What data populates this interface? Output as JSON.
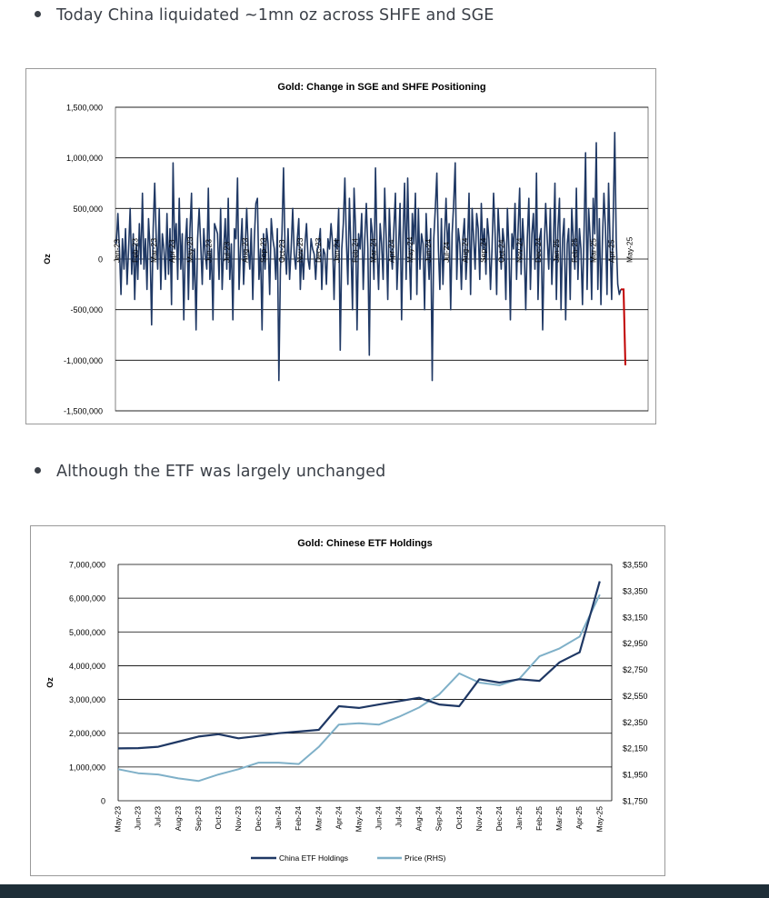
{
  "bullets": [
    "Today China liquidated ~1mn oz across SHFE and SGE",
    "Although the ETF was largely unchanged"
  ],
  "colors": {
    "navy": "#1f3864",
    "red": "#c00000",
    "light_blue": "#7fb0c8",
    "grid": "#000000",
    "footer": "#1e2e38"
  },
  "chart_data": [
    {
      "type": "line",
      "title": "Gold: Change in SGE and SHFE Positioning",
      "ylabel": "Oz",
      "ylim": [
        -1500000,
        1500000
      ],
      "yticks": [
        1500000,
        1000000,
        500000,
        0,
        -500000,
        -1000000,
        -1500000
      ],
      "ytick_labels": [
        "1,500,000",
        "1,000,000",
        "500,000",
        "0",
        "-500,000",
        "-1,000,000",
        "-1,500,000"
      ],
      "xtick_labels": [
        "Jan-23",
        "Feb-23",
        "Mar-23",
        "Apr-23",
        "May-23",
        "Jun-23",
        "Jul-23",
        "Aug-23",
        "Sep-23",
        "Oct-23",
        "Nov-23",
        "Dec-23",
        "Jan-24",
        "Feb-24",
        "Mar-24",
        "Apr-24",
        "May-24",
        "Jun-24",
        "Jul-24",
        "Aug-24",
        "Sep-24",
        "Oct-24",
        "Nov-24",
        "Dec-24",
        "Jan-25",
        "Feb-25",
        "Mar-25",
        "Apr-25",
        "May-25"
      ],
      "grid": "horizontal",
      "series": [
        {
          "color": "navy",
          "values": [
            150000,
            450000,
            100000,
            -350000,
            200000,
            -100000,
            300000,
            -250000,
            100000,
            500000,
            -150000,
            250000,
            -400000,
            150000,
            -200000,
            350000,
            -50000,
            650000,
            -100000,
            200000,
            -300000,
            400000,
            100000,
            -650000,
            300000,
            750000,
            200000,
            -100000,
            500000,
            -300000,
            250000,
            100000,
            -200000,
            450000,
            -150000,
            300000,
            -450000,
            950000,
            100000,
            350000,
            -200000,
            600000,
            -100000,
            250000,
            -600000,
            150000,
            400000,
            -400000,
            300000,
            650000,
            -300000,
            100000,
            -700000,
            200000,
            500000,
            150000,
            -250000,
            300000,
            50000,
            -100000,
            700000,
            -200000,
            100000,
            -600000,
            350000,
            300000,
            250000,
            -200000,
            500000,
            -300000,
            100000,
            400000,
            -100000,
            600000,
            -200000,
            150000,
            -600000,
            300000,
            200000,
            800000,
            -300000,
            100000,
            400000,
            -250000,
            100000,
            500000,
            100000,
            -100000,
            300000,
            -400000,
            200000,
            550000,
            600000,
            -200000,
            100000,
            -700000,
            250000,
            -100000,
            300000,
            150000,
            -350000,
            400000,
            200000,
            100000,
            -200000,
            300000,
            -1200000,
            -100000,
            250000,
            900000,
            100000,
            -150000,
            300000,
            -200000,
            100000,
            500000,
            50000,
            -100000,
            200000,
            400000,
            -300000,
            100000,
            -200000,
            150000,
            350000,
            0,
            -100000,
            200000,
            100000,
            50000,
            -200000,
            100000,
            150000,
            300000,
            -300000,
            100000,
            50000,
            -250000,
            200000,
            100000,
            350000,
            150000,
            -400000,
            200000,
            100000,
            500000,
            -900000,
            100000,
            350000,
            800000,
            200000,
            -250000,
            600000,
            100000,
            -500000,
            700000,
            300000,
            -700000,
            250000,
            100000,
            450000,
            -300000,
            200000,
            550000,
            100000,
            -950000,
            400000,
            250000,
            -200000,
            900000,
            100000,
            -300000,
            350000,
            150000,
            -200000,
            700000,
            200000,
            -400000,
            500000,
            100000,
            -100000,
            300000,
            650000,
            -300000,
            100000,
            550000,
            -600000,
            250000,
            750000,
            -200000,
            800000,
            100000,
            -400000,
            450000,
            150000,
            650000,
            -350000,
            500000,
            -100000,
            250000,
            150000,
            -500000,
            450000,
            100000,
            -200000,
            300000,
            -1200000,
            200000,
            500000,
            850000,
            100000,
            -300000,
            400000,
            -250000,
            200000,
            600000,
            100000,
            350000,
            -500000,
            250000,
            550000,
            950000,
            -200000,
            300000,
            150000,
            -300000,
            200000,
            400000,
            -200000,
            100000,
            650000,
            -350000,
            500000,
            200000,
            -100000,
            450000,
            300000,
            -200000,
            550000,
            100000,
            300000,
            -150000,
            400000,
            200000,
            -300000,
            100000,
            650000,
            250000,
            -350000,
            500000,
            200000,
            -100000,
            300000,
            150000,
            -400000,
            500000,
            100000,
            -600000,
            250000,
            100000,
            550000,
            -200000,
            300000,
            700000,
            -150000,
            400000,
            100000,
            -500000,
            200000,
            600000,
            -300000,
            250000,
            450000,
            -100000,
            850000,
            -400000,
            200000,
            300000,
            -700000,
            100000,
            550000,
            200000,
            -100000,
            500000,
            -250000,
            150000,
            750000,
            -400000,
            300000,
            600000,
            -500000,
            200000,
            400000,
            -600000,
            150000,
            300000,
            -400000,
            500000,
            200000,
            -100000,
            700000,
            -200000,
            300000,
            100000,
            -450000,
            250000,
            1050000,
            -300000,
            500000,
            200000,
            -400000,
            600000,
            250000,
            1150000,
            -300000,
            400000,
            -450000,
            200000,
            650000,
            300000,
            -350000,
            750000,
            150000,
            -400000,
            400000,
            1250000,
            200000,
            -250000,
            -350000,
            -300000
          ],
          "final_move_color": "red",
          "final_move_values": [
            -300000,
            -1050000
          ]
        }
      ]
    },
    {
      "type": "line",
      "title": "Gold: Chinese ETF Holdings",
      "ylabel": "Oz",
      "ylim": [
        0,
        7000000
      ],
      "yticks": [
        0,
        1000000,
        2000000,
        3000000,
        4000000,
        5000000,
        6000000,
        7000000
      ],
      "ytick_labels": [
        "0",
        "1,000,000",
        "2,000,000",
        "3,000,000",
        "4,000,000",
        "5,000,000",
        "6,000,000",
        "7,000,000"
      ],
      "y2lim": [
        1750,
        3550
      ],
      "y2ticks": [
        1750,
        1950,
        2150,
        2350,
        2550,
        2750,
        2950,
        3150,
        3350,
        3550
      ],
      "y2tick_labels": [
        "$1,750",
        "$1,950",
        "$2,150",
        "$2,350",
        "$2,550",
        "$2,750",
        "$2,950",
        "$3,150",
        "$3,350",
        "$3,550"
      ],
      "categories": [
        "May-23",
        "Jun-23",
        "Jul-23",
        "Aug-23",
        "Sep-23",
        "Oct-23",
        "Nov-23",
        "Dec-23",
        "Jan-24",
        "Feb-24",
        "Mar-24",
        "Apr-24",
        "May-24",
        "Jun-24",
        "Jul-24",
        "Aug-24",
        "Sep-24",
        "Oct-24",
        "Nov-24",
        "Dec-24",
        "Jan-25",
        "Feb-25",
        "Mar-25",
        "Apr-25",
        "May-25"
      ],
      "legend_position": "bottom",
      "grid": "horizontal",
      "series": [
        {
          "name": "China ETF Holdings",
          "axis": "left",
          "color": "navy",
          "values": [
            1550000,
            1560000,
            1600000,
            1750000,
            1900000,
            1970000,
            1850000,
            1920000,
            2000000,
            2050000,
            2100000,
            2800000,
            2750000,
            2850000,
            2950000,
            3050000,
            2850000,
            2800000,
            3600000,
            3500000,
            3600000,
            3550000,
            4100000,
            4400000,
            6500000
          ]
        },
        {
          "name": "Price (RHS)",
          "axis": "right",
          "color": "light_blue",
          "values": [
            1990,
            1960,
            1950,
            1920,
            1900,
            1950,
            1990,
            2040,
            2040,
            2030,
            2160,
            2330,
            2340,
            2330,
            2390,
            2460,
            2560,
            2720,
            2650,
            2630,
            2680,
            2850,
            2910,
            3000,
            3320
          ]
        }
      ]
    }
  ]
}
